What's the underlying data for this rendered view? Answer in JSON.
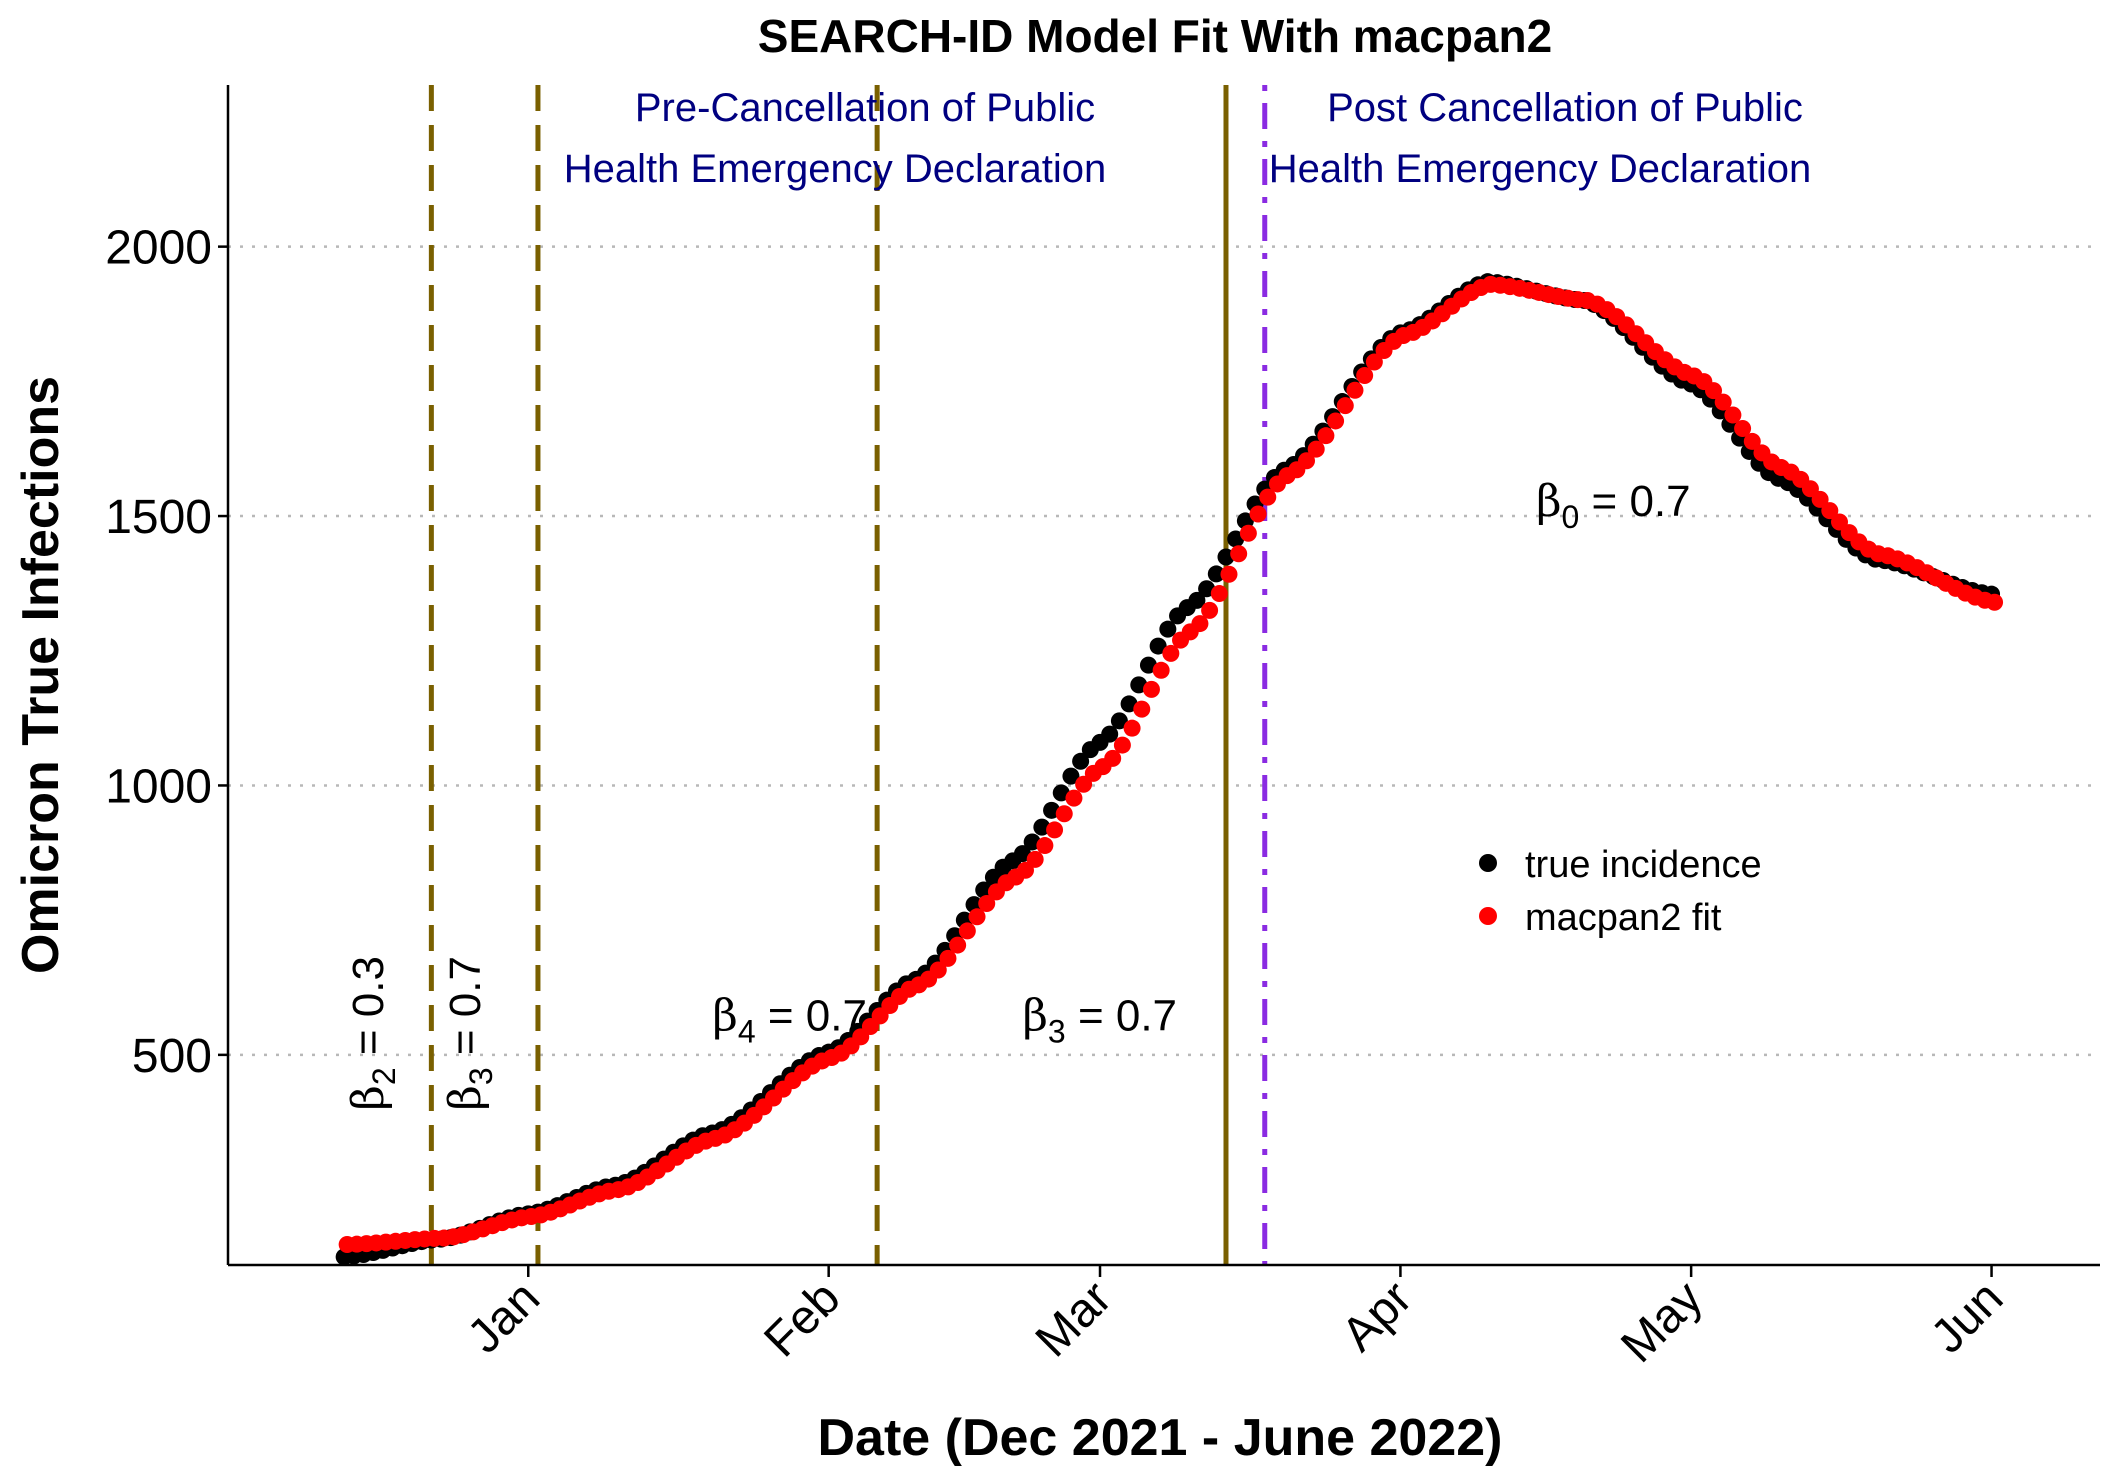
{
  "chart_data": {
    "type": "scatter",
    "title": "SEARCH-ID Model Fit With macpan2",
    "xlabel": "Date (Dec 2021  - June 2022)",
    "ylabel": "Omicron True Infections",
    "x_range": [
      "2021-12-07",
      "2022-06-06"
    ],
    "ylim": [
      110,
      2300
    ],
    "y_ticks": [
      500,
      1000,
      1500,
      2000
    ],
    "x_ticks": [
      {
        "label": "Jan",
        "date": "2022-01-01"
      },
      {
        "label": "Feb",
        "date": "2022-02-01"
      },
      {
        "label": "Mar",
        "date": "2022-03-01"
      },
      {
        "label": "Apr",
        "date": "2022-04-01"
      },
      {
        "label": "May",
        "date": "2022-05-01"
      },
      {
        "label": "Jun",
        "date": "2022-06-01"
      }
    ],
    "grid": "horizontal dotted at y ticks",
    "legend_position": "right-center",
    "series": [
      {
        "name": "true incidence",
        "color": "#000000",
        "x_start": "2021-12-13",
        "x_end": "2022-06-01",
        "anchors": [
          [
            "2021-12-13",
            125
          ],
          [
            "2021-12-23",
            158
          ],
          [
            "2022-01-01",
            205
          ],
          [
            "2022-01-10",
            258
          ],
          [
            "2022-01-20",
            355
          ],
          [
            "2022-02-01",
            505
          ],
          [
            "2022-02-10",
            640
          ],
          [
            "2022-02-20",
            860
          ],
          [
            "2022-03-01",
            1080
          ],
          [
            "2022-03-10",
            1330
          ],
          [
            "2022-03-20",
            1585
          ],
          [
            "2022-04-01",
            1840
          ],
          [
            "2022-04-10",
            1935
          ],
          [
            "2022-04-20",
            1900
          ],
          [
            "2022-05-01",
            1745
          ],
          [
            "2022-05-10",
            1570
          ],
          [
            "2022-05-20",
            1420
          ],
          [
            "2022-06-01",
            1355
          ]
        ]
      },
      {
        "name": "macpan2 fit",
        "color": "#ff0000",
        "x_start": "2021-12-13",
        "x_end": "2022-06-01",
        "anchors": [
          [
            "2021-12-13",
            148
          ],
          [
            "2021-12-23",
            160
          ],
          [
            "2022-01-01",
            200
          ],
          [
            "2022-01-10",
            250
          ],
          [
            "2022-01-20",
            345
          ],
          [
            "2022-02-01",
            495
          ],
          [
            "2022-02-10",
            630
          ],
          [
            "2022-02-20",
            830
          ],
          [
            "2022-03-01",
            1035
          ],
          [
            "2022-03-10",
            1285
          ],
          [
            "2022-03-20",
            1575
          ],
          [
            "2022-04-01",
            1835
          ],
          [
            "2022-04-10",
            1930
          ],
          [
            "2022-04-20",
            1900
          ],
          [
            "2022-05-01",
            1760
          ],
          [
            "2022-05-10",
            1590
          ],
          [
            "2022-05-20",
            1430
          ],
          [
            "2022-06-01",
            1340
          ]
        ]
      }
    ],
    "vlines": [
      {
        "date": "2021-12-22",
        "style": "dashed",
        "color": "#7a6000"
      },
      {
        "date": "2022-01-02",
        "style": "dashed",
        "color": "#7a6000"
      },
      {
        "date": "2022-02-06",
        "style": "dashed",
        "color": "#7a6000"
      },
      {
        "date": "2022-03-14",
        "style": "solid",
        "color": "#7a6000"
      },
      {
        "date": "2022-03-18",
        "style": "dotdash",
        "color": "#8a2be2"
      }
    ],
    "annotations": {
      "pre_line1": "Pre-Cancellation of Public",
      "pre_line2": "Health Emergency Declaration",
      "post_line1": "Post Cancellation of Public",
      "post_line2": "Health Emergency Declaration"
    },
    "beta_labels": [
      {
        "sym": "β",
        "sub": "2",
        "text": " = 0.3",
        "date": "2021-12-17",
        "y": 540,
        "rotated": true
      },
      {
        "sym": "β",
        "sub": "3",
        "text": " = 0.7",
        "date": "2021-12-27",
        "y": 540,
        "rotated": true
      },
      {
        "sym": "β",
        "sub": "4",
        "text": " = 0.7",
        "date": "2022-01-20",
        "y": 545,
        "rotated": false
      },
      {
        "sym": "β",
        "sub": "3",
        "text": " = 0.7",
        "date": "2022-02-21",
        "y": 545,
        "rotated": false
      },
      {
        "sym": "β",
        "sub": "0",
        "text": " = 0.7",
        "date": "2022-04-15",
        "y": 1500,
        "rotated": false
      }
    ]
  }
}
